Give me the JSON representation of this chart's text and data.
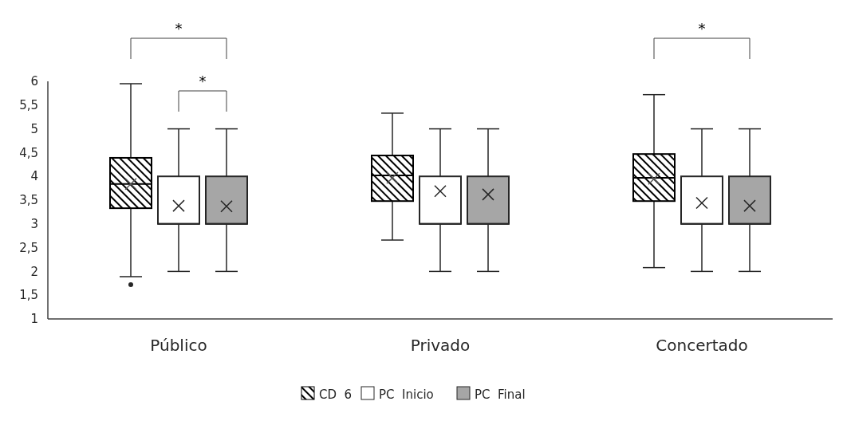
{
  "chart_data": {
    "type": "box",
    "categories": [
      "Público",
      "Privado",
      "Concertado"
    ],
    "series": [
      {
        "name": "CD  6",
        "color": "#000000",
        "boxes": [
          {
            "low": 1.89,
            "q1": 3.33,
            "median": 3.84,
            "q3": 4.39,
            "high": 5.95,
            "mean": 3.84,
            "outliers": [
              1.72
            ]
          },
          {
            "low": 2.66,
            "q1": 3.48,
            "median": 4.02,
            "q3": 4.44,
            "high": 5.33,
            "mean": 3.97
          },
          {
            "low": 2.08,
            "q1": 3.48,
            "median": 3.97,
            "q3": 4.47,
            "high": 5.72,
            "mean": 3.95
          }
        ]
      },
      {
        "name": "PC  Inicio",
        "color": "#ffffff",
        "boxes": [
          {
            "low": 2,
            "q1": 3,
            "median": 3,
            "q3": 4,
            "high": 5,
            "mean": 3.38
          },
          {
            "low": 2,
            "q1": 3,
            "median": 3,
            "q3": 4,
            "high": 5,
            "mean": 3.69
          },
          {
            "low": 2,
            "q1": 3,
            "median": 3,
            "q3": 4,
            "high": 5,
            "mean": 3.44
          }
        ]
      },
      {
        "name": "PC  Final",
        "color": "#a6a6a6",
        "boxes": [
          {
            "low": 2,
            "q1": 3,
            "median": 3,
            "q3": 4,
            "high": 5,
            "mean": 3.37
          },
          {
            "low": 2,
            "q1": 3,
            "median": 3,
            "q3": 4,
            "high": 5,
            "mean": 3.62
          },
          {
            "low": 2,
            "q1": 3,
            "median": 3,
            "q3": 4,
            "high": 5,
            "mean": 3.38
          }
        ]
      }
    ],
    "ylim": [
      1,
      6
    ],
    "yticks": [
      1,
      {
        "value": 1.5,
        "label": "1,5"
      },
      2,
      {
        "value": 2.5,
        "label": "2,5"
      },
      3,
      {
        "value": 3.5,
        "label": "3,5"
      },
      4,
      {
        "value": 4.5,
        "label": "4,5"
      },
      5,
      {
        "value": 5.5,
        "label": "5,5"
      },
      6
    ],
    "grid": false,
    "legend": "bottom",
    "marker": "cross",
    "annotations": [
      "*",
      "*",
      "*"
    ]
  }
}
